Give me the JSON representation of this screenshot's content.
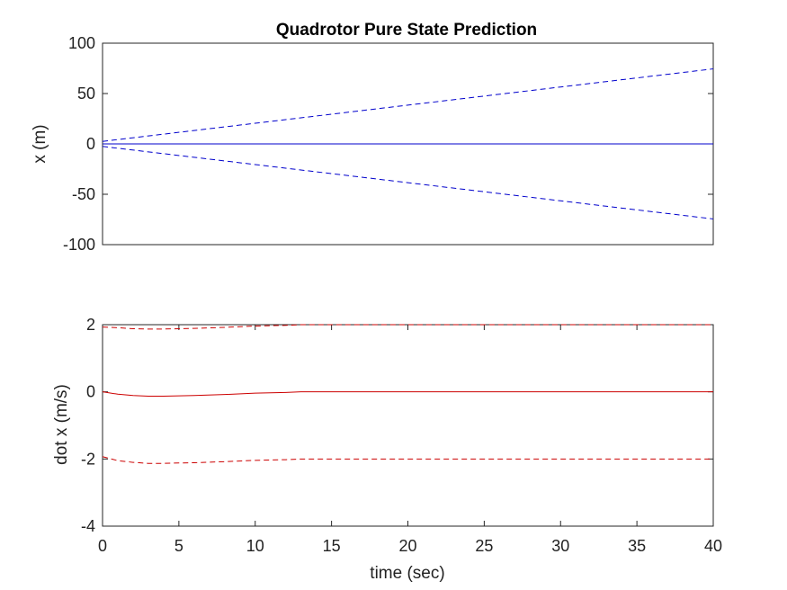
{
  "title": "Quadrotor Pure State Prediction",
  "chart_data": [
    {
      "type": "line",
      "title": "Quadrotor Pure State Prediction",
      "xlabel": "",
      "ylabel": "x (m)",
      "xlim": [
        0,
        40
      ],
      "ylim": [
        -100,
        100
      ],
      "xticks": [],
      "yticks": [
        -100,
        -50,
        0,
        50,
        100
      ],
      "grid": false,
      "legend": "none",
      "color": "#0000cc",
      "series": [
        {
          "style": "solid",
          "x": [
            0,
            40
          ],
          "y": [
            0,
            0
          ]
        },
        {
          "style": "dashed",
          "x": [
            0,
            10,
            20,
            30,
            40
          ],
          "y": [
            2.5,
            20.5,
            38.5,
            56.5,
            74.5
          ]
        },
        {
          "style": "dashed",
          "x": [
            0,
            10,
            20,
            30,
            40
          ],
          "y": [
            -2.5,
            -20.5,
            -38.5,
            -56.5,
            -74.5
          ]
        }
      ]
    },
    {
      "type": "line",
      "title": "",
      "xlabel": "time (sec)",
      "ylabel": "dot x (m/s)",
      "xlim": [
        0,
        40
      ],
      "ylim": [
        -4,
        2
      ],
      "xticks": [
        0,
        5,
        10,
        15,
        20,
        25,
        30,
        35,
        40
      ],
      "yticks": [
        -4,
        -2,
        0,
        2
      ],
      "grid": false,
      "legend": "none",
      "color": "#cc0000",
      "series": [
        {
          "style": "solid",
          "x": [
            0,
            1,
            2,
            3,
            4,
            5,
            6,
            8,
            10,
            12,
            13,
            15,
            20,
            25,
            30,
            40
          ],
          "y": [
            0,
            -0.07,
            -0.11,
            -0.13,
            -0.13,
            -0.12,
            -0.11,
            -0.08,
            -0.04,
            -0.02,
            0,
            0,
            0,
            0,
            0,
            0
          ]
        },
        {
          "style": "dashed",
          "x": [
            0,
            1,
            2,
            3,
            4,
            5,
            6,
            8,
            10,
            12,
            13,
            15,
            20,
            25,
            30,
            40
          ],
          "y": [
            1.93,
            1.91,
            1.88,
            1.87,
            1.87,
            1.88,
            1.89,
            1.92,
            1.96,
            1.98,
            2,
            2,
            2,
            2,
            2,
            2
          ]
        },
        {
          "style": "dashed",
          "x": [
            0,
            1,
            2,
            3,
            4,
            5,
            6,
            8,
            10,
            12,
            13,
            15,
            20,
            25,
            30,
            40
          ],
          "y": [
            -1.93,
            -2.05,
            -2.1,
            -2.13,
            -2.13,
            -2.12,
            -2.11,
            -2.08,
            -2.04,
            -2.02,
            -2,
            -2,
            -2,
            -2,
            -2,
            -2
          ]
        }
      ]
    }
  ]
}
